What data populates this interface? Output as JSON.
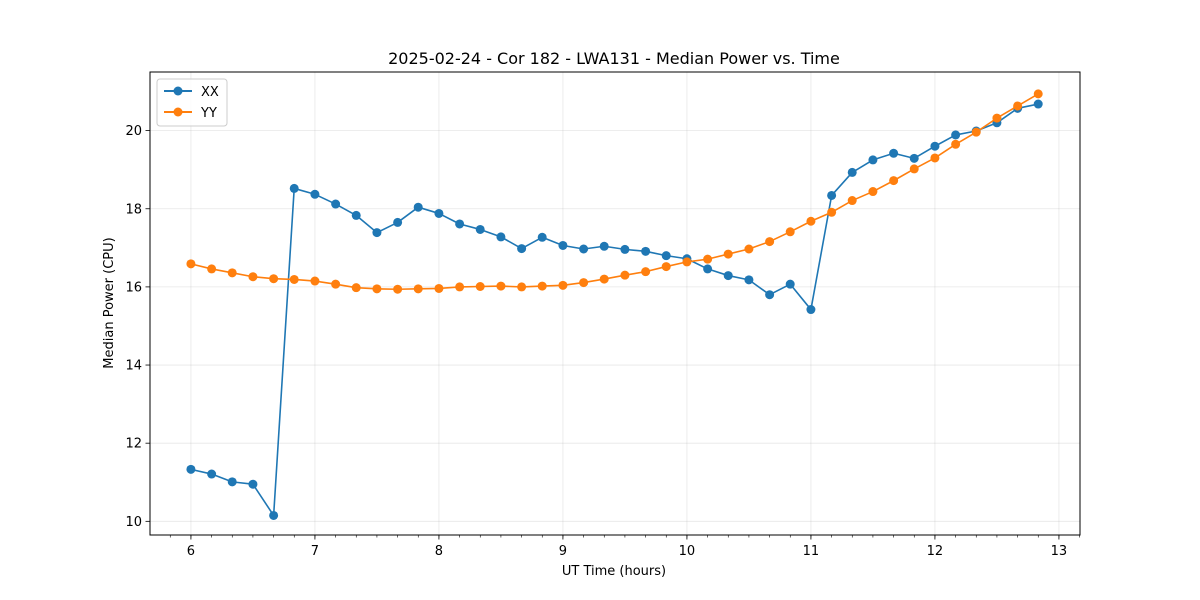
{
  "chart_data": {
    "type": "line",
    "title": "2025-02-24 - Cor 182 - LWA131 - Median Power vs. Time",
    "xlabel": "UT Time (hours)",
    "ylabel": "Median Power (CPU)",
    "xlim": [
      5.67,
      13.17
    ],
    "ylim": [
      9.65,
      21.5
    ],
    "xticks": [
      6,
      7,
      8,
      9,
      10,
      11,
      12,
      13
    ],
    "yticks": [
      10,
      12,
      14,
      16,
      18,
      20
    ],
    "grid": true,
    "legend_position": "top-left",
    "x": [
      6.0,
      6.167,
      6.333,
      6.5,
      6.667,
      6.833,
      7.0,
      7.167,
      7.333,
      7.5,
      7.667,
      7.833,
      8.0,
      8.167,
      8.333,
      8.5,
      8.667,
      8.833,
      9.0,
      9.167,
      9.333,
      9.5,
      9.667,
      9.833,
      10.0,
      10.167,
      10.333,
      10.5,
      10.667,
      10.833,
      11.0,
      11.167,
      11.333,
      11.5,
      11.667,
      11.833,
      12.0,
      12.167,
      12.333,
      12.5,
      12.667,
      12.833
    ],
    "series": [
      {
        "name": "XX",
        "color": "#1f77b4",
        "values": [
          11.33,
          11.21,
          11.01,
          10.95,
          10.15,
          18.52,
          18.37,
          18.12,
          17.83,
          17.39,
          17.65,
          18.04,
          17.88,
          17.61,
          17.47,
          17.28,
          16.98,
          17.27,
          17.06,
          16.97,
          17.04,
          16.96,
          16.91,
          16.8,
          16.72,
          16.46,
          16.29,
          16.18,
          15.8,
          16.07,
          15.42,
          18.34,
          18.93,
          19.25,
          19.42,
          19.29,
          19.6,
          19.89,
          19.99,
          20.2,
          20.57,
          20.68
        ]
      },
      {
        "name": "YY",
        "color": "#ff7f0e",
        "values": [
          16.59,
          16.46,
          16.36,
          16.26,
          16.21,
          16.19,
          16.15,
          16.07,
          15.98,
          15.95,
          15.94,
          15.95,
          15.96,
          16.0,
          16.01,
          16.02,
          16.0,
          16.02,
          16.04,
          16.11,
          16.2,
          16.3,
          16.39,
          16.52,
          16.64,
          16.71,
          16.84,
          16.97,
          17.16,
          17.41,
          17.68,
          17.91,
          18.21,
          18.44,
          18.72,
          19.02,
          19.3,
          19.65,
          19.96,
          20.32,
          20.63,
          20.94
        ]
      }
    ]
  }
}
